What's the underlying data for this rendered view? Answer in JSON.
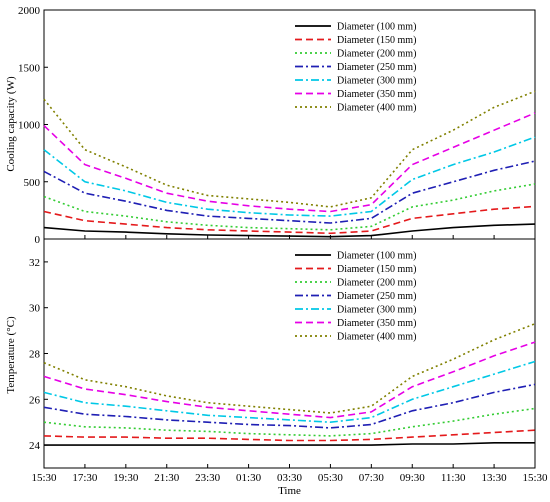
{
  "figure": {
    "xlabel": "Time",
    "xtick_labels": [
      "15:30",
      "17:30",
      "19:30",
      "21:30",
      "23:30",
      "01:30",
      "03:30",
      "05:30",
      "07:30",
      "09:30",
      "11:30",
      "13:30",
      "15:30"
    ]
  },
  "chart_data": [
    {
      "type": "line",
      "ylabel": "Cooling capacity (W)",
      "ylim": [
        0,
        2000
      ],
      "yticks": [
        0,
        500,
        1000,
        1500,
        2000
      ],
      "legend_position": "top-right",
      "x": [
        "15:30",
        "17:30",
        "19:30",
        "21:30",
        "23:30",
        "01:30",
        "03:30",
        "05:30",
        "07:30",
        "09:30",
        "11:30",
        "13:30",
        "15:30"
      ],
      "series": [
        {
          "name": "Diameter (100 mm)",
          "color": "#000000",
          "dash": "solid",
          "values": [
            100,
            70,
            60,
            45,
            35,
            30,
            25,
            20,
            30,
            70,
            100,
            120,
            130
          ]
        },
        {
          "name": "Diameter (150 mm)",
          "color": "#e41a1c",
          "dash": "dashed",
          "values": [
            240,
            160,
            130,
            100,
            80,
            70,
            60,
            50,
            70,
            180,
            220,
            260,
            285
          ]
        },
        {
          "name": "Diameter (200 mm)",
          "color": "#33cc33",
          "dash": "dotted",
          "values": [
            370,
            240,
            200,
            150,
            120,
            100,
            90,
            80,
            110,
            280,
            340,
            420,
            480
          ]
        },
        {
          "name": "Diameter (250 mm)",
          "color": "#1f1fb4",
          "dash": "dashdot",
          "values": [
            590,
            400,
            330,
            250,
            200,
            180,
            160,
            140,
            180,
            400,
            500,
            600,
            680
          ]
        },
        {
          "name": "Diameter (300 mm)",
          "color": "#00c8e6",
          "dash": "dashdot",
          "values": [
            780,
            500,
            420,
            320,
            260,
            230,
            210,
            200,
            240,
            520,
            650,
            760,
            890
          ]
        },
        {
          "name": "Diameter (350 mm)",
          "color": "#e600e6",
          "dash": "dashed",
          "values": [
            990,
            650,
            530,
            400,
            330,
            290,
            260,
            240,
            300,
            650,
            800,
            950,
            1100
          ]
        },
        {
          "name": "Diameter (400 mm)",
          "color": "#808000",
          "dash": "dotted",
          "values": [
            1220,
            780,
            630,
            470,
            380,
            350,
            320,
            280,
            360,
            780,
            950,
            1150,
            1290
          ]
        }
      ]
    },
    {
      "type": "line",
      "ylabel": "Temperature (°C)",
      "ylim": [
        23,
        33
      ],
      "yticks": [
        24,
        26,
        28,
        30,
        32
      ],
      "legend_position": "top-right",
      "x": [
        "15:30",
        "17:30",
        "19:30",
        "21:30",
        "23:30",
        "01:30",
        "03:30",
        "05:30",
        "07:30",
        "09:30",
        "11:30",
        "13:30",
        "15:30"
      ],
      "series": [
        {
          "name": "Diameter (100 mm)",
          "color": "#000000",
          "dash": "solid",
          "values": [
            24.0,
            24.0,
            24.0,
            24.0,
            24.0,
            24.0,
            24.0,
            24.0,
            24.0,
            24.05,
            24.05,
            24.1,
            24.1
          ]
        },
        {
          "name": "Diameter (150 mm)",
          "color": "#e41a1c",
          "dash": "dashed",
          "values": [
            24.4,
            24.35,
            24.35,
            24.3,
            24.3,
            24.25,
            24.2,
            24.2,
            24.25,
            24.35,
            24.45,
            24.55,
            24.65
          ]
        },
        {
          "name": "Diameter (200 mm)",
          "color": "#33cc33",
          "dash": "dotted",
          "values": [
            25.0,
            24.8,
            24.75,
            24.65,
            24.6,
            24.5,
            24.45,
            24.4,
            24.5,
            24.8,
            25.05,
            25.35,
            25.6
          ]
        },
        {
          "name": "Diameter (250 mm)",
          "color": "#1f1fb4",
          "dash": "dashdot",
          "values": [
            25.65,
            25.35,
            25.25,
            25.1,
            25.0,
            24.9,
            24.85,
            24.75,
            24.9,
            25.5,
            25.85,
            26.3,
            26.65
          ]
        },
        {
          "name": "Diameter (300 mm)",
          "color": "#00c8e6",
          "dash": "dashdot",
          "values": [
            26.3,
            25.85,
            25.7,
            25.5,
            25.3,
            25.2,
            25.1,
            25.0,
            25.2,
            26.0,
            26.55,
            27.1,
            27.65
          ]
        },
        {
          "name": "Diameter (350 mm)",
          "color": "#e600e6",
          "dash": "dashed",
          "values": [
            27.0,
            26.45,
            26.2,
            25.9,
            25.65,
            25.5,
            25.35,
            25.2,
            25.45,
            26.55,
            27.2,
            27.9,
            28.5
          ]
        },
        {
          "name": "Diameter (400 mm)",
          "color": "#808000",
          "dash": "dotted",
          "values": [
            27.6,
            26.85,
            26.55,
            26.15,
            25.85,
            25.7,
            25.55,
            25.4,
            25.7,
            27.0,
            27.75,
            28.6,
            29.3
          ]
        }
      ]
    }
  ]
}
